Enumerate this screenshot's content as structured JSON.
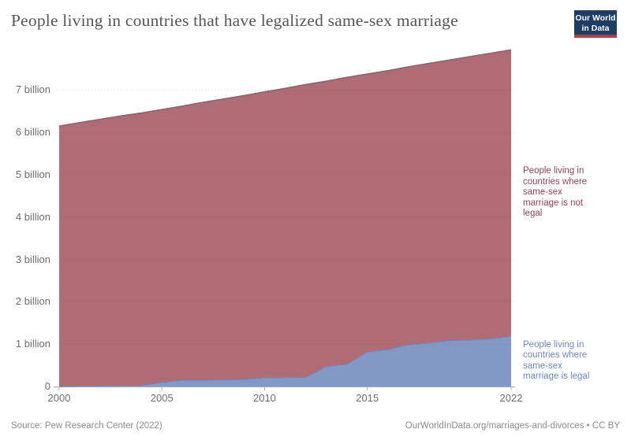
{
  "header": {
    "title": "People living in countries that have legalized same-sex marriage",
    "logo": {
      "line1": "Our World",
      "line2": "in Data",
      "bg_color": "#1d3d63",
      "stripe_color": "#bf3b35"
    }
  },
  "chart_data": {
    "type": "area",
    "stacked": true,
    "title": "People living in countries that have legalized same-sex marriage",
    "x": [
      2000,
      2001,
      2002,
      2003,
      2004,
      2005,
      2006,
      2007,
      2008,
      2009,
      2010,
      2011,
      2012,
      2013,
      2014,
      2015,
      2016,
      2017,
      2018,
      2019,
      2020,
      2021,
      2022
    ],
    "series": [
      {
        "name": "People living in countries where same-sex marriage is legal",
        "label_lines": [
          "People living in",
          "countries where",
          "same-sex",
          "marriage is legal"
        ],
        "color": "#8399c5",
        "line_color": "#6d86ba",
        "label_color": "#6e87bb",
        "unit": "billion people",
        "values": [
          0.005,
          0.016,
          0.016,
          0.027,
          0.03,
          0.1,
          0.15,
          0.15,
          0.16,
          0.17,
          0.21,
          0.215,
          0.22,
          0.48,
          0.53,
          0.82,
          0.88,
          0.99,
          1.03,
          1.09,
          1.1,
          1.13,
          1.19
        ]
      },
      {
        "name": "People living in countries where same-sex marriage is not legal",
        "label_lines": [
          "People living in",
          "countries where",
          "same-sex",
          "marriage is not",
          "legal"
        ],
        "color": "#ae6c75",
        "line_color": "#9c5a65",
        "label_color": "#8d4454",
        "unit": "billion people",
        "values": [
          6.145,
          6.214,
          6.294,
          6.363,
          6.43,
          6.44,
          6.47,
          6.56,
          6.63,
          6.7,
          6.75,
          6.825,
          6.91,
          6.73,
          6.77,
          6.56,
          6.58,
          6.56,
          6.6,
          6.62,
          6.69,
          6.74,
          6.76
        ]
      }
    ],
    "ylim": [
      0,
      8
    ],
    "yticks": [
      0,
      1,
      2,
      3,
      4,
      5,
      6,
      7
    ],
    "ytick_labels": [
      "0",
      "1 billion",
      "2 billion",
      "3 billion",
      "4 billion",
      "5 billion",
      "6 billion",
      "7 billion"
    ],
    "xticks": [
      2000,
      2005,
      2010,
      2015,
      2022
    ],
    "xtick_labels": [
      "2000",
      "2005",
      "2010",
      "2015",
      "2022"
    ],
    "grid": "dotted horizontal",
    "legend_position": "right-edge entity labels"
  },
  "footer": {
    "source": "Source: Pew Research Center (2022)",
    "attribution": "OurWorldInData.org/marriages-and-divorces • CC BY"
  }
}
